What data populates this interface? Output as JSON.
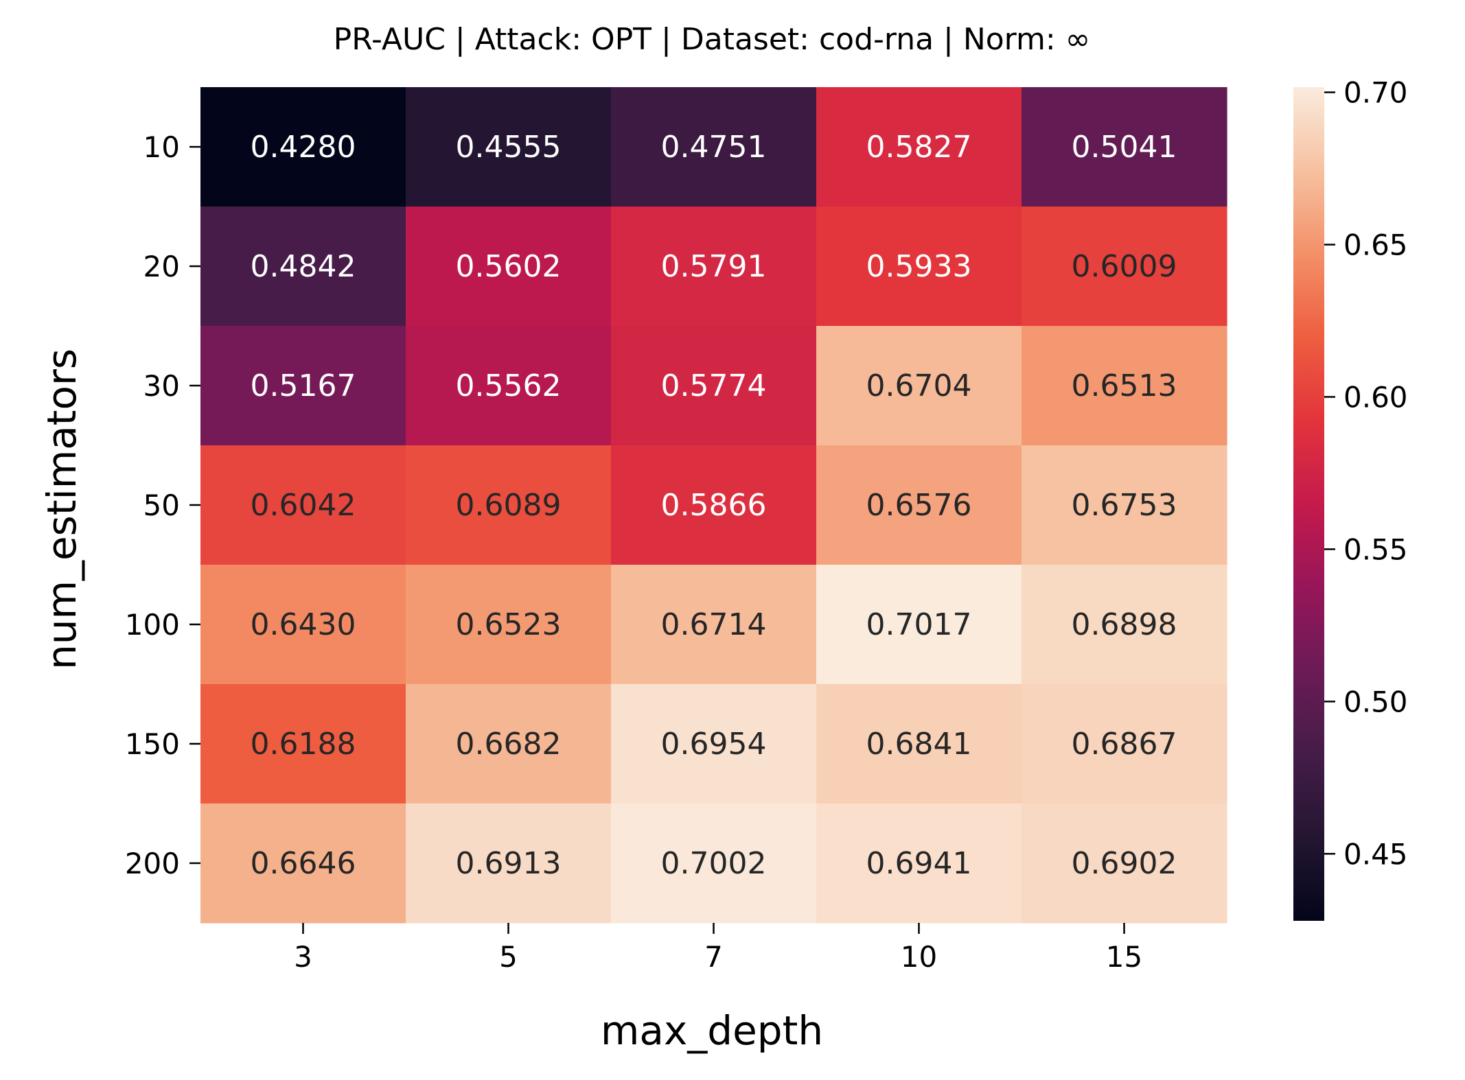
{
  "chart_data": {
    "type": "heatmap",
    "title": "PR-AUC | Attack: OPT | Dataset: cod-rna | Norm: ∞",
    "xlabel": "max_depth",
    "ylabel": "num_estimators",
    "x_categories": [
      "3",
      "5",
      "7",
      "10",
      "15"
    ],
    "y_categories": [
      "10",
      "20",
      "30",
      "50",
      "100",
      "150",
      "200"
    ],
    "values": [
      [
        0.428,
        0.4555,
        0.4751,
        0.5827,
        0.5041
      ],
      [
        0.4842,
        0.5602,
        0.5791,
        0.5933,
        0.6009
      ],
      [
        0.5167,
        0.5562,
        0.5774,
        0.6704,
        0.6513
      ],
      [
        0.6042,
        0.6089,
        0.5866,
        0.6576,
        0.6753
      ],
      [
        0.643,
        0.6523,
        0.6714,
        0.7017,
        0.6898
      ],
      [
        0.6188,
        0.6682,
        0.6954,
        0.6841,
        0.6867
      ],
      [
        0.6646,
        0.6913,
        0.7002,
        0.6941,
        0.6902
      ]
    ],
    "value_format": "0.0000",
    "colormap": "rocket",
    "color_range": [
      0.428,
      0.7017
    ],
    "colorbar_ticks": [
      "0.45",
      "0.50",
      "0.55",
      "0.60",
      "0.65",
      "0.70"
    ],
    "colorbar_tick_values": [
      0.45,
      0.5,
      0.55,
      0.6,
      0.65,
      0.7
    ],
    "annotation_text_colors": {
      "dark": "#262626",
      "light": "#ffffff"
    }
  }
}
